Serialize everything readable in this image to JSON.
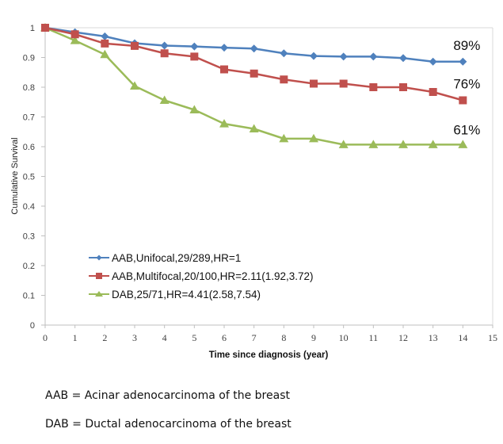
{
  "chart_data": {
    "type": "line",
    "title": "",
    "xlabel": "Time since diagnosis (year)",
    "ylabel": "Cumulative Survival",
    "xlim": [
      0,
      15
    ],
    "ylim": [
      0,
      1
    ],
    "x_ticks": [
      "0",
      "1",
      "2",
      "3",
      "4",
      "5",
      "6",
      "7",
      "8",
      "9",
      "10",
      "11",
      "12",
      "13",
      "14",
      "15"
    ],
    "y_ticks": [
      "0",
      "0.1",
      "0.2",
      "0.3",
      "0.4",
      "0.5",
      "0.6",
      "0.7",
      "0.8",
      "0.9",
      "1"
    ],
    "grid": false,
    "legend_position": "bottom-left (inside plot)",
    "x": [
      0,
      1,
      2,
      3,
      4,
      5,
      6,
      7,
      8,
      9,
      10,
      11,
      12,
      13,
      14
    ],
    "series": [
      {
        "name": "AAB,Unifocal,29/289,HR=1",
        "color": "#4F81BD",
        "marker": "diamond",
        "values": [
          1.0,
          0.985,
          0.971,
          0.948,
          0.94,
          0.937,
          0.933,
          0.93,
          0.914,
          0.905,
          0.903,
          0.903,
          0.898,
          0.886,
          0.886
        ],
        "end_label": "89%"
      },
      {
        "name": "AAB,Multifocal,20/100,HR=2.11(1.92,3.72)",
        "color": "#C0504D",
        "marker": "square",
        "values": [
          1.0,
          0.978,
          0.947,
          0.939,
          0.914,
          0.903,
          0.86,
          0.846,
          0.826,
          0.812,
          0.812,
          0.8,
          0.8,
          0.784,
          0.756
        ],
        "end_label": "76%"
      },
      {
        "name": "DAB,25/71,HR=4.41(2.58,7.54)",
        "color": "#9BBB59",
        "marker": "triangle",
        "values": [
          1.0,
          0.957,
          0.91,
          0.804,
          0.756,
          0.724,
          0.677,
          0.66,
          0.627,
          0.627,
          0.607,
          0.607,
          0.607,
          0.607,
          0.607
        ],
        "end_label": "61%"
      }
    ]
  },
  "notes": [
    "AAB = Acinar adenocarcinoma of the breast",
    "DAB = Ductal adenocarcinoma of the breast"
  ]
}
